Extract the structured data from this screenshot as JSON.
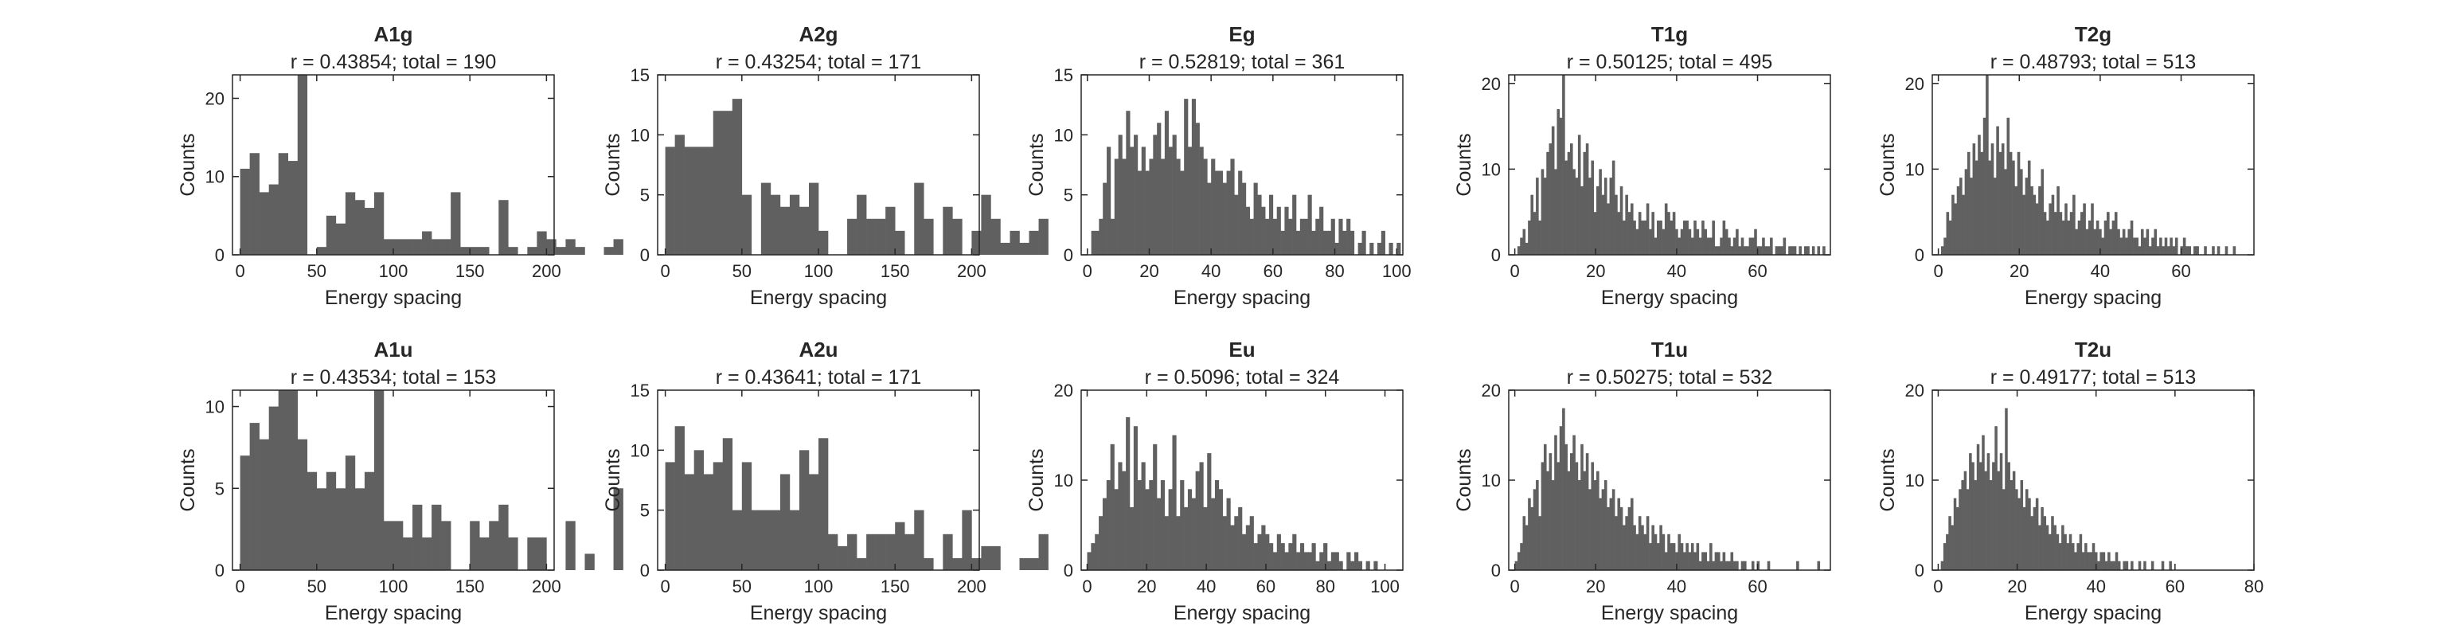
{
  "figure": {
    "colors": {
      "bar": "#606060",
      "axis": "#262626",
      "background": "#ffffff"
    }
  },
  "chart_data": [
    {
      "type": "bar",
      "title": "A1g",
      "subtitle": "r = 0.43854; total = 190",
      "xlabel": "Energy spacing",
      "ylabel": "Counts",
      "xlim": [
        -5,
        205
      ],
      "ylim": [
        0,
        23
      ],
      "xticks": [
        0,
        50,
        100,
        150,
        200
      ],
      "yticks": [
        0,
        10,
        20
      ],
      "bin_start": 0,
      "bin_width": 6.25,
      "values": [
        11,
        13,
        8,
        9,
        13,
        12,
        23,
        0,
        1,
        5,
        4,
        8,
        7,
        6,
        8,
        2,
        2,
        2,
        2,
        3,
        2,
        2,
        8,
        1,
        1,
        1,
        0,
        7,
        1,
        0,
        1,
        3,
        2,
        1,
        2,
        1,
        0,
        0,
        1,
        2
      ]
    },
    {
      "type": "bar",
      "title": "A2g",
      "subtitle": "r = 0.43254; total = 171",
      "xlabel": "Energy spacing",
      "ylabel": "Counts",
      "xlim": [
        -5,
        205
      ],
      "ylim": [
        0,
        15
      ],
      "xticks": [
        0,
        50,
        100,
        150,
        200
      ],
      "yticks": [
        0,
        5,
        10,
        15
      ],
      "bin_start": 0,
      "bin_width": 6.25,
      "values": [
        9,
        10,
        9,
        9,
        9,
        12,
        12,
        13,
        5,
        0,
        6,
        5,
        4,
        5,
        4,
        6,
        2,
        0,
        0,
        3,
        5,
        3,
        3,
        4,
        2,
        0,
        6,
        3,
        0,
        4,
        3,
        0,
        2,
        5,
        3,
        1,
        2,
        1,
        2,
        3
      ]
    },
    {
      "type": "bar",
      "title": "Eg",
      "subtitle": "r = 0.52819; total = 361",
      "xlabel": "Energy spacing",
      "ylabel": "Counts",
      "xlim": [
        -2,
        102
      ],
      "ylim": [
        0,
        15
      ],
      "xticks": [
        0,
        20,
        40,
        60,
        80,
        100
      ],
      "yticks": [
        0,
        5,
        10,
        15
      ],
      "bin_start": 0,
      "bin_width": 1.25,
      "values": [
        0,
        2,
        2,
        3,
        6,
        9,
        3,
        8,
        10,
        8,
        12,
        9,
        10,
        7,
        9,
        7,
        8,
        10,
        11,
        8,
        12,
        9,
        10,
        8,
        7,
        13,
        9,
        13,
        11,
        9,
        8,
        6,
        8,
        7,
        7,
        6,
        7,
        8,
        5,
        7,
        6,
        4,
        3,
        6,
        5,
        4,
        3,
        5,
        3,
        4,
        2,
        4,
        3,
        5,
        2,
        3,
        3,
        5,
        2,
        3,
        4,
        2,
        2,
        3,
        1,
        3,
        2,
        3,
        2,
        0,
        1,
        2,
        0,
        1,
        0,
        1,
        2,
        0,
        1,
        0,
        1,
        0,
        0,
        0,
        0,
        0,
        0,
        0,
        0,
        0,
        0,
        0,
        0,
        0,
        0,
        0,
        0,
        0,
        0,
        0,
        0,
        0,
        0,
        0,
        0,
        0,
        0,
        0,
        0,
        0,
        0,
        0,
        0,
        1,
        0,
        0,
        0,
        0,
        0,
        0
      ]
    },
    {
      "type": "bar",
      "title": "T1g",
      "subtitle": "r = 0.50125; total = 495",
      "xlabel": "Energy spacing",
      "ylabel": "Counts",
      "xlim": [
        -1.5,
        78
      ],
      "ylim": [
        0,
        21
      ],
      "xticks": [
        0,
        20,
        40,
        60
      ],
      "yticks": [
        0,
        10,
        20
      ],
      "bin_start": 0,
      "bin_width": 0.65,
      "values": [
        0,
        1,
        2,
        3,
        1,
        4,
        7,
        5,
        9,
        4,
        10,
        9,
        12,
        13,
        15,
        10,
        17,
        16,
        21,
        11,
        12,
        13,
        10,
        9,
        14,
        8,
        12,
        13,
        9,
        11,
        5,
        8,
        10,
        7,
        9,
        6,
        9,
        11,
        7,
        5,
        8,
        4,
        7,
        5,
        6,
        4,
        3,
        5,
        4,
        4,
        6,
        3,
        5,
        2,
        4,
        4,
        3,
        6,
        5,
        4,
        5,
        3,
        2,
        3,
        4,
        4,
        3,
        2,
        4,
        3,
        2,
        4,
        3,
        2,
        2,
        4,
        1,
        1,
        2,
        4,
        3,
        2,
        1,
        2,
        3,
        1,
        2,
        1,
        1,
        2,
        2,
        3,
        1,
        1,
        2,
        1,
        1,
        2,
        0,
        1,
        1,
        1,
        2,
        0,
        1,
        1,
        1,
        0,
        1,
        0,
        1,
        1,
        0,
        1,
        0,
        1,
        0,
        1,
        0,
        0
      ]
    },
    {
      "type": "bar",
      "title": "T2g",
      "subtitle": "r = 0.48793; total = 513",
      "xlabel": "Energy spacing",
      "ylabel": "Counts",
      "xlim": [
        -1.5,
        78
      ],
      "ylim": [
        0,
        21
      ],
      "xticks": [
        0,
        20,
        40,
        60
      ],
      "yticks": [
        0,
        10,
        20
      ],
      "bin_start": 0,
      "bin_width": 0.65,
      "values": [
        0,
        1,
        2,
        5,
        4,
        7,
        6,
        8,
        9,
        7,
        10,
        12,
        9,
        13,
        11,
        14,
        12,
        16,
        21,
        11,
        13,
        9,
        15,
        12,
        13,
        10,
        16,
        12,
        11,
        8,
        12,
        10,
        7,
        9,
        11,
        8,
        7,
        6,
        8,
        10,
        5,
        4,
        6,
        7,
        5,
        8,
        5,
        4,
        6,
        4,
        5,
        7,
        3,
        4,
        5,
        6,
        3,
        4,
        6,
        3,
        4,
        3,
        2,
        4,
        5,
        3,
        4,
        5,
        3,
        2,
        3,
        2,
        3,
        4,
        2,
        2,
        1,
        3,
        2,
        3,
        1,
        2,
        3,
        1,
        2,
        1,
        2,
        1,
        2,
        1,
        2,
        0,
        1,
        2,
        1,
        1,
        0,
        1,
        1,
        0,
        0,
        1,
        0,
        0,
        1,
        0,
        1,
        0,
        0,
        1,
        0,
        0,
        1,
        0,
        0,
        0,
        0,
        0,
        0,
        0
      ]
    },
    {
      "type": "bar",
      "title": "A1u",
      "subtitle": "r = 0.43534; total = 153",
      "xlabel": "Energy spacing",
      "ylabel": "Counts",
      "xlim": [
        -5,
        205
      ],
      "ylim": [
        0,
        11
      ],
      "xticks": [
        0,
        50,
        100,
        150,
        200
      ],
      "yticks": [
        0,
        5,
        10
      ],
      "bin_start": 0,
      "bin_width": 6.25,
      "values": [
        7,
        9,
        8,
        10,
        11,
        11,
        8,
        6,
        5,
        6,
        5,
        7,
        5,
        6,
        11,
        3,
        3,
        2,
        4,
        2,
        4,
        3,
        0,
        0,
        3,
        2,
        3,
        4,
        2,
        0,
        2,
        2,
        0,
        0,
        3,
        0,
        1,
        0,
        0,
        5
      ]
    },
    {
      "type": "bar",
      "title": "A2u",
      "subtitle": "r = 0.43641; total = 171",
      "xlabel": "Energy spacing",
      "ylabel": "Counts",
      "xlim": [
        -5,
        205
      ],
      "ylim": [
        0,
        15
      ],
      "xticks": [
        0,
        50,
        100,
        150,
        200
      ],
      "yticks": [
        0,
        5,
        10,
        15
      ],
      "bin_start": 0,
      "bin_width": 6.25,
      "values": [
        9,
        12,
        8,
        10,
        8,
        9,
        11,
        5,
        9,
        5,
        5,
        5,
        8,
        5,
        10,
        8,
        11,
        3,
        2,
        3,
        1,
        3,
        3,
        3,
        4,
        3,
        5,
        1,
        0,
        3,
        1,
        5,
        1,
        2,
        2,
        0,
        0,
        1,
        1,
        3
      ]
    },
    {
      "type": "bar",
      "title": "Eu",
      "subtitle": "r = 0.5096; total = 324",
      "xlabel": "Energy spacing",
      "ylabel": "Counts",
      "xlim": [
        -2,
        106
      ],
      "ylim": [
        0,
        20
      ],
      "xticks": [
        0,
        20,
        40,
        60,
        80,
        100
      ],
      "yticks": [
        0,
        10,
        20
      ],
      "bin_start": 0,
      "bin_width": 1.3,
      "values": [
        2,
        3,
        4,
        6,
        8,
        10,
        14,
        9,
        12,
        11,
        17,
        7,
        16,
        10,
        12,
        9,
        10,
        14,
        8,
        10,
        6,
        9,
        15,
        6,
        10,
        7,
        9,
        8,
        11,
        12,
        7,
        13,
        8,
        10,
        9,
        6,
        8,
        5,
        6,
        7,
        4,
        5,
        6,
        3,
        4,
        5,
        4,
        3,
        2,
        4,
        3,
        2,
        3,
        4,
        2,
        3,
        2,
        2,
        3,
        1,
        2,
        3,
        1,
        2,
        2,
        1,
        0,
        2,
        1,
        2,
        1,
        0,
        1,
        0,
        1,
        0,
        0,
        0,
        0,
        0,
        0,
        0,
        0,
        0,
        0,
        0,
        0,
        0,
        0,
        0,
        0,
        0,
        0,
        0,
        0,
        0,
        0,
        0,
        0,
        0,
        0,
        0,
        0,
        0,
        0,
        0,
        0,
        0,
        0,
        0,
        0,
        0,
        0,
        0,
        0,
        0,
        1,
        0,
        0
      ]
    },
    {
      "type": "bar",
      "title": "T1u",
      "subtitle": "r = 0.50275; total = 532",
      "xlabel": "Energy spacing",
      "ylabel": "Counts",
      "xlim": [
        -1.5,
        78
      ],
      "ylim": [
        0,
        20
      ],
      "xticks": [
        0,
        20,
        40,
        60
      ],
      "yticks": [
        0,
        10,
        20
      ],
      "bin_start": 0,
      "bin_width": 0.65,
      "values": [
        1,
        2,
        3,
        6,
        5,
        8,
        7,
        9,
        10,
        6,
        12,
        14,
        11,
        13,
        10,
        15,
        12,
        16,
        18,
        14,
        11,
        13,
        15,
        12,
        10,
        14,
        11,
        13,
        9,
        12,
        10,
        11,
        8,
        9,
        10,
        7,
        8,
        9,
        6,
        8,
        7,
        5,
        6,
        7,
        8,
        5,
        4,
        6,
        5,
        4,
        6,
        3,
        5,
        4,
        3,
        5,
        4,
        2,
        4,
        3,
        3,
        2,
        4,
        3,
        2,
        3,
        2,
        3,
        2,
        3,
        1,
        2,
        2,
        1,
        3,
        1,
        2,
        2,
        1,
        2,
        1,
        1,
        2,
        1,
        1,
        0,
        1,
        1,
        0,
        0,
        1,
        0,
        1,
        0,
        0,
        0,
        1,
        0,
        0,
        0,
        0,
        0,
        0,
        0,
        0,
        0,
        0,
        1,
        0,
        0,
        0,
        0,
        0,
        0,
        0,
        1,
        0,
        0,
        0,
        0
      ]
    },
    {
      "type": "bar",
      "title": "T2u",
      "subtitle": "r = 0.49177; total = 513",
      "xlabel": "Energy spacing",
      "ylabel": "Counts",
      "xlim": [
        -1.5,
        80
      ],
      "ylim": [
        0,
        20
      ],
      "xticks": [
        0,
        20,
        40,
        60,
        80
      ],
      "yticks": [
        0,
        10,
        20
      ],
      "bin_start": 0,
      "bin_width": 0.65,
      "values": [
        0,
        1,
        3,
        4,
        6,
        5,
        8,
        7,
        9,
        10,
        11,
        9,
        13,
        12,
        10,
        14,
        12,
        15,
        11,
        13,
        10,
        12,
        16,
        11,
        13,
        9,
        18,
        12,
        10,
        11,
        9,
        8,
        10,
        7,
        9,
        8,
        6,
        7,
        8,
        5,
        7,
        6,
        5,
        4,
        6,
        5,
        4,
        3,
        5,
        4,
        3,
        4,
        3,
        2,
        3,
        4,
        2,
        3,
        2,
        2,
        3,
        2,
        1,
        2,
        2,
        1,
        2,
        1,
        1,
        2,
        1,
        0,
        1,
        1,
        0,
        1,
        0,
        0,
        1,
        0,
        1,
        0,
        0,
        1,
        0,
        0,
        0,
        1,
        0,
        0,
        1,
        0,
        0,
        0,
        0,
        0,
        0,
        0,
        0,
        0,
        0,
        0,
        0,
        0,
        0,
        0,
        0,
        0,
        0,
        0,
        0,
        0,
        0,
        0,
        0,
        0,
        0,
        0,
        0,
        0
      ]
    }
  ]
}
